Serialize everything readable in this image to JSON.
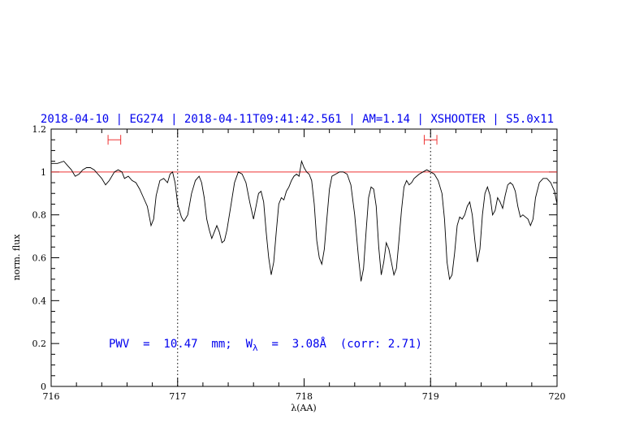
{
  "chart_data": {
    "type": "line",
    "title": "2018-04-10 | EG274 | 2018-04-11T09:41:42.561 | AM=1.14 | XSHOOTER | S5.0x11",
    "xlabel": "λ(AA)",
    "ylabel": "norm. flux",
    "xlim": [
      716,
      720
    ],
    "ylim": [
      0,
      1.2
    ],
    "x_ticks": [
      "716",
      "717",
      "718",
      "719",
      "720"
    ],
    "y_ticks": [
      "0",
      "0.2",
      "0.4",
      "0.6",
      "0.8",
      "1",
      "1.2"
    ],
    "reference_line": {
      "y": 1.0,
      "color": "#ee3333"
    },
    "vertical_markers": [
      717.0,
      719.0
    ],
    "continuum_windows": [
      [
        716.45,
        716.55
      ],
      [
        718.95,
        719.05
      ]
    ],
    "annotation": {
      "pwv_text": "PWV  =  10.47  mm;  W",
      "w_sub": "λ",
      "w_text": "  =  3.08Å  (corr: 2.71)"
    },
    "colors": {
      "title": "#0000ee",
      "annotation": "#0000ee",
      "spectrum": "#000000",
      "axes": "#000000"
    },
    "series": [
      {
        "values": [
          [
            716.0,
            1.04
          ],
          [
            716.05,
            1.04
          ],
          [
            716.1,
            1.05
          ],
          [
            716.13,
            1.03
          ],
          [
            716.16,
            1.01
          ],
          [
            716.19,
            0.98
          ],
          [
            716.22,
            0.99
          ],
          [
            716.25,
            1.01
          ],
          [
            716.28,
            1.02
          ],
          [
            716.31,
            1.02
          ],
          [
            716.34,
            1.01
          ],
          [
            716.37,
            0.99
          ],
          [
            716.4,
            0.97
          ],
          [
            716.43,
            0.94
          ],
          [
            716.46,
            0.96
          ],
          [
            716.5,
            1.0
          ],
          [
            716.53,
            1.01
          ],
          [
            716.56,
            1.0
          ],
          [
            716.58,
            0.97
          ],
          [
            716.61,
            0.98
          ],
          [
            716.64,
            0.96
          ],
          [
            716.67,
            0.95
          ],
          [
            716.7,
            0.92
          ],
          [
            716.73,
            0.88
          ],
          [
            716.76,
            0.84
          ],
          [
            716.78,
            0.78
          ],
          [
            716.79,
            0.75
          ],
          [
            716.81,
            0.78
          ],
          [
            716.83,
            0.89
          ],
          [
            716.86,
            0.96
          ],
          [
            716.89,
            0.97
          ],
          [
            716.92,
            0.95
          ],
          [
            716.94,
            0.99
          ],
          [
            716.96,
            1.0
          ],
          [
            716.98,
            0.95
          ],
          [
            717.0,
            0.85
          ],
          [
            717.03,
            0.79
          ],
          [
            717.05,
            0.77
          ],
          [
            717.08,
            0.8
          ],
          [
            717.11,
            0.9
          ],
          [
            717.14,
            0.96
          ],
          [
            717.17,
            0.98
          ],
          [
            717.19,
            0.95
          ],
          [
            717.21,
            0.88
          ],
          [
            717.23,
            0.78
          ],
          [
            717.25,
            0.73
          ],
          [
            717.27,
            0.69
          ],
          [
            717.29,
            0.72
          ],
          [
            717.31,
            0.75
          ],
          [
            717.33,
            0.72
          ],
          [
            717.35,
            0.67
          ],
          [
            717.37,
            0.68
          ],
          [
            717.39,
            0.73
          ],
          [
            717.42,
            0.84
          ],
          [
            717.45,
            0.95
          ],
          [
            717.48,
            1.0
          ],
          [
            717.51,
            0.99
          ],
          [
            717.54,
            0.95
          ],
          [
            717.57,
            0.86
          ],
          [
            717.6,
            0.78
          ],
          [
            717.62,
            0.84
          ],
          [
            717.64,
            0.9
          ],
          [
            717.66,
            0.91
          ],
          [
            717.68,
            0.86
          ],
          [
            717.7,
            0.72
          ],
          [
            717.72,
            0.6
          ],
          [
            717.74,
            0.52
          ],
          [
            717.76,
            0.58
          ],
          [
            717.78,
            0.72
          ],
          [
            717.8,
            0.85
          ],
          [
            717.82,
            0.88
          ],
          [
            717.84,
            0.87
          ],
          [
            717.86,
            0.91
          ],
          [
            717.88,
            0.93
          ],
          [
            717.9,
            0.96
          ],
          [
            717.92,
            0.98
          ],
          [
            717.94,
            0.99
          ],
          [
            717.96,
            0.98
          ],
          [
            717.98,
            1.05
          ],
          [
            718.0,
            1.02
          ],
          [
            718.02,
            1.0
          ],
          [
            718.04,
            0.99
          ],
          [
            718.06,
            0.96
          ],
          [
            718.08,
            0.85
          ],
          [
            718.1,
            0.68
          ],
          [
            718.12,
            0.6
          ],
          [
            718.14,
            0.57
          ],
          [
            718.16,
            0.64
          ],
          [
            718.18,
            0.78
          ],
          [
            718.2,
            0.92
          ],
          [
            718.22,
            0.98
          ],
          [
            718.25,
            0.99
          ],
          [
            718.28,
            1.0
          ],
          [
            718.31,
            1.0
          ],
          [
            718.34,
            0.99
          ],
          [
            718.37,
            0.94
          ],
          [
            718.4,
            0.8
          ],
          [
            718.43,
            0.6
          ],
          [
            718.45,
            0.49
          ],
          [
            718.47,
            0.55
          ],
          [
            718.49,
            0.72
          ],
          [
            718.51,
            0.88
          ],
          [
            718.53,
            0.93
          ],
          [
            718.55,
            0.92
          ],
          [
            718.57,
            0.84
          ],
          [
            718.59,
            0.65
          ],
          [
            718.61,
            0.52
          ],
          [
            718.63,
            0.58
          ],
          [
            718.65,
            0.67
          ],
          [
            718.67,
            0.64
          ],
          [
            718.69,
            0.58
          ],
          [
            718.71,
            0.52
          ],
          [
            718.73,
            0.55
          ],
          [
            718.75,
            0.68
          ],
          [
            718.77,
            0.82
          ],
          [
            718.79,
            0.93
          ],
          [
            718.81,
            0.96
          ],
          [
            718.83,
            0.94
          ],
          [
            718.85,
            0.95
          ],
          [
            718.87,
            0.97
          ],
          [
            718.89,
            0.98
          ],
          [
            718.91,
            0.99
          ],
          [
            718.94,
            1.0
          ],
          [
            718.97,
            1.01
          ],
          [
            719.0,
            1.0
          ],
          [
            719.03,
            0.99
          ],
          [
            719.06,
            0.96
          ],
          [
            719.09,
            0.9
          ],
          [
            719.11,
            0.78
          ],
          [
            719.13,
            0.58
          ],
          [
            719.15,
            0.5
          ],
          [
            719.17,
            0.52
          ],
          [
            719.19,
            0.62
          ],
          [
            719.21,
            0.75
          ],
          [
            719.23,
            0.79
          ],
          [
            719.25,
            0.78
          ],
          [
            719.27,
            0.8
          ],
          [
            719.29,
            0.84
          ],
          [
            719.31,
            0.86
          ],
          [
            719.33,
            0.8
          ],
          [
            719.35,
            0.68
          ],
          [
            719.37,
            0.58
          ],
          [
            719.39,
            0.64
          ],
          [
            719.41,
            0.8
          ],
          [
            719.43,
            0.9
          ],
          [
            719.45,
            0.93
          ],
          [
            719.47,
            0.89
          ],
          [
            719.49,
            0.8
          ],
          [
            719.51,
            0.82
          ],
          [
            719.53,
            0.88
          ],
          [
            719.55,
            0.86
          ],
          [
            719.57,
            0.83
          ],
          [
            719.59,
            0.89
          ],
          [
            719.61,
            0.94
          ],
          [
            719.63,
            0.95
          ],
          [
            719.65,
            0.94
          ],
          [
            719.67,
            0.91
          ],
          [
            719.69,
            0.84
          ],
          [
            719.71,
            0.79
          ],
          [
            719.73,
            0.8
          ],
          [
            719.75,
            0.79
          ],
          [
            719.77,
            0.78
          ],
          [
            719.79,
            0.75
          ],
          [
            719.81,
            0.78
          ],
          [
            719.83,
            0.88
          ],
          [
            719.86,
            0.95
          ],
          [
            719.89,
            0.97
          ],
          [
            719.92,
            0.97
          ],
          [
            719.95,
            0.95
          ],
          [
            719.98,
            0.91
          ],
          [
            720.0,
            0.85
          ]
        ]
      }
    ]
  }
}
